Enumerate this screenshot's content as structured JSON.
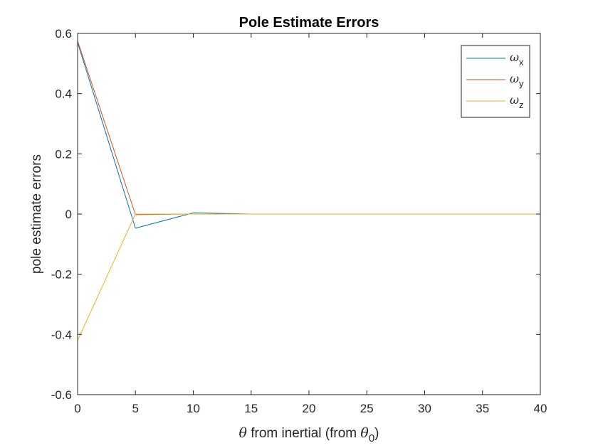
{
  "chart_data": {
    "type": "line",
    "title": "Pole Estimate Errors",
    "xlabel": {
      "symbol": "θ",
      "text": " from inertial (from ",
      "symbol2": "θ",
      "subscript": "0",
      "close": ")"
    },
    "ylabel": "pole estimate errors",
    "xlim": [
      0,
      40
    ],
    "ylim": [
      -0.6,
      0.6
    ],
    "xticks": [
      0,
      5,
      10,
      15,
      20,
      25,
      30,
      35,
      40
    ],
    "xtick_labels": [
      "0",
      "5",
      "10",
      "15",
      "20",
      "25",
      "30",
      "35",
      "40"
    ],
    "yticks": [
      0.6,
      0.4,
      0.2,
      0,
      -0.2,
      -0.4,
      -0.6
    ],
    "ytick_labels": [
      "0.6",
      "0.4",
      "0.2",
      "0",
      "-0.2",
      "-0.4",
      "-0.6"
    ],
    "grid": false,
    "legend_position": "top-right",
    "x": [
      0,
      5,
      10,
      15,
      20,
      25,
      30,
      35,
      40
    ],
    "series": [
      {
        "name": "ω",
        "sub": "x",
        "color": "#0072BD",
        "values": [
          0.57,
          -0.047,
          0.004,
          0.0,
          0.0,
          0.0,
          0.0,
          0.0,
          0.0
        ]
      },
      {
        "name": "ω",
        "sub": "y",
        "color": "#D95319",
        "values": [
          0.575,
          -0.002,
          0.0,
          0.0,
          0.0,
          0.0,
          0.0,
          0.0,
          0.0
        ]
      },
      {
        "name": "ω",
        "sub": "z",
        "color": "#EDB120",
        "values": [
          -0.42,
          0.0,
          0.0,
          0.0,
          0.0,
          0.0,
          0.0,
          0.0,
          0.0
        ]
      }
    ]
  }
}
